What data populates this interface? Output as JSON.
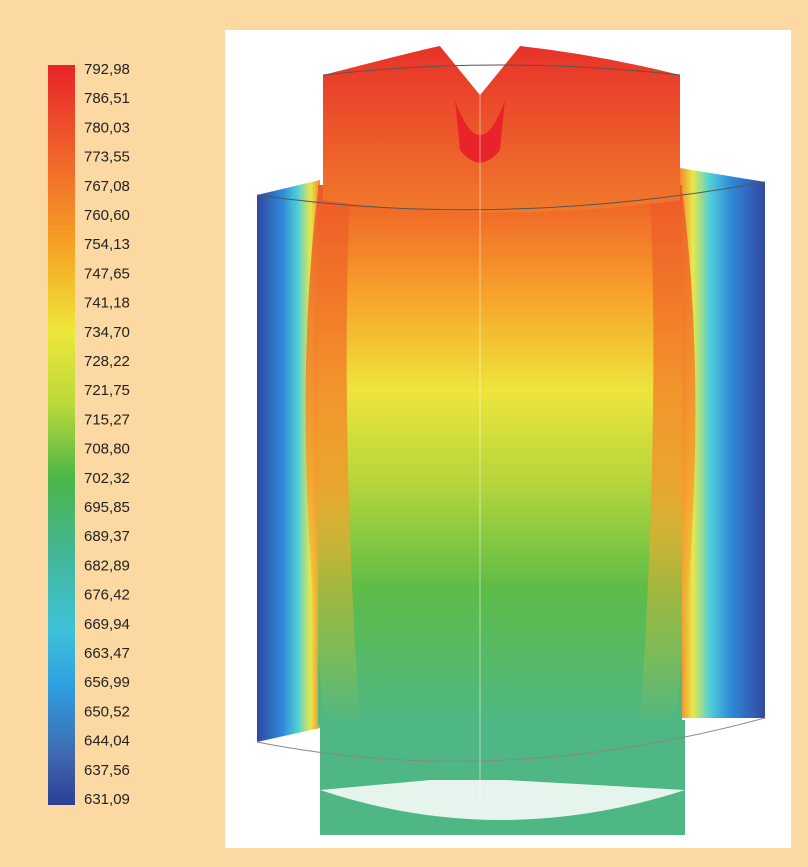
{
  "legend": {
    "labels": [
      "792,98",
      "786,51",
      "780,03",
      "773,55",
      "767,08",
      "760,60",
      "754,13",
      "747,65",
      "741,18",
      "734,70",
      "728,22",
      "721,75",
      "715,27",
      "708,80",
      "702,32",
      "695,85",
      "689,37",
      "682,89",
      "676,42",
      "669,94",
      "663,47",
      "656,99",
      "650,52",
      "644,04",
      "637,56",
      "631,09"
    ]
  }
}
